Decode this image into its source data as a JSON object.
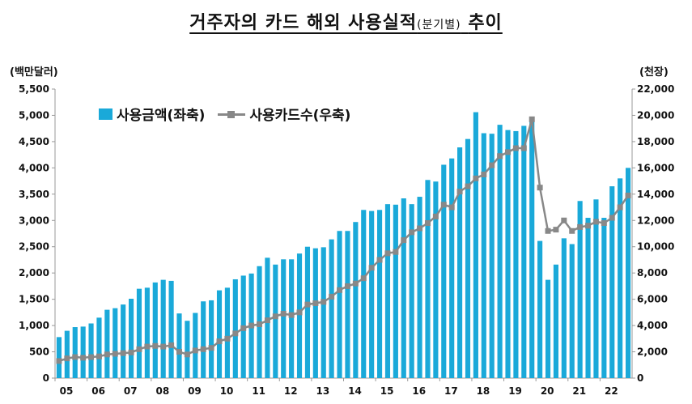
{
  "title": {
    "main": "거주자의 카드 해외 사용실적",
    "sub": "(분기별)",
    "suffix": "추이"
  },
  "colors": {
    "bar": "#1aa9d9",
    "line": "#888888",
    "axis": "#999999"
  },
  "chart_data": {
    "type": "bar",
    "title": "거주자의 카드 해외 사용실적(분기별) 추이",
    "left_unit": "(백만달러)",
    "right_unit": "(천장)",
    "x_tick_labels": [
      "05",
      "06",
      "07",
      "08",
      "09",
      "10",
      "11",
      "12",
      "13",
      "14",
      "15",
      "16",
      "17",
      "18",
      "19",
      "20",
      "21",
      "22"
    ],
    "y_left": {
      "lim": [
        0,
        5500
      ],
      "ticks": [
        "0",
        "500",
        "1,000",
        "1,500",
        "2,000",
        "2,500",
        "3,000",
        "3,500",
        "4,000",
        "4,500",
        "5,000",
        "5,500"
      ]
    },
    "y_right": {
      "lim": [
        0,
        22000
      ],
      "ticks": [
        "0",
        "2,000",
        "4,000",
        "6,000",
        "8,000",
        "10,000",
        "12,000",
        "14,000",
        "16,000",
        "18,000",
        "20,000",
        "22,000"
      ]
    },
    "grid": false,
    "legend_position": "top-left",
    "series": [
      {
        "name": "사용금액(좌축)",
        "kind": "bar",
        "axis": "left",
        "values": [
          780,
          900,
          970,
          980,
          1040,
          1150,
          1300,
          1330,
          1400,
          1510,
          1700,
          1720,
          1820,
          1870,
          1850,
          1230,
          1090,
          1240,
          1460,
          1480,
          1670,
          1720,
          1880,
          1950,
          1990,
          2130,
          2290,
          2160,
          2260,
          2260,
          2370,
          2500,
          2470,
          2490,
          2640,
          2800,
          2800,
          2970,
          3200,
          3180,
          3200,
          3310,
          3300,
          3420,
          3310,
          3450,
          3770,
          3740,
          4060,
          4180,
          4390,
          4550,
          5060,
          4660,
          4650,
          4820,
          4720,
          4700,
          4800,
          4930,
          2610,
          1870,
          2160,
          2660,
          2550,
          3370,
          3050,
          3400,
          3050,
          3650,
          3800,
          4000
        ]
      },
      {
        "name": "사용카드수(우축)",
        "kind": "line",
        "axis": "right",
        "values": [
          1300,
          1500,
          1600,
          1550,
          1600,
          1650,
          1800,
          1850,
          1900,
          1950,
          2200,
          2400,
          2450,
          2400,
          2500,
          2000,
          1800,
          2100,
          2200,
          2300,
          2800,
          3000,
          3400,
          3800,
          4000,
          4100,
          4400,
          4700,
          4900,
          4800,
          5000,
          5600,
          5700,
          5800,
          6200,
          6700,
          7000,
          7200,
          7600,
          8400,
          9000,
          9500,
          9600,
          10500,
          11100,
          11400,
          11800,
          12300,
          13200,
          13000,
          14200,
          14600,
          15200,
          15500,
          16200,
          16900,
          17200,
          17500,
          17500,
          19700,
          14500,
          11200,
          11300,
          12000,
          11200,
          11500,
          11600,
          11900,
          11800,
          12200,
          13000,
          13900
        ]
      }
    ]
  }
}
